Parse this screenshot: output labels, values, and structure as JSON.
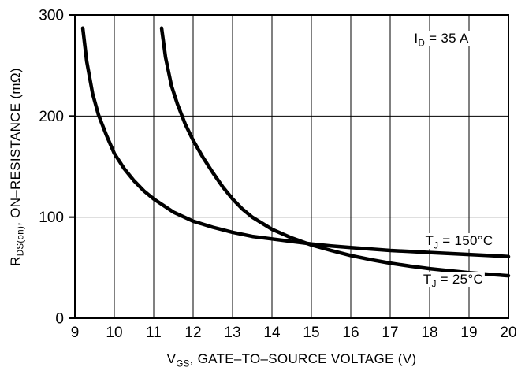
{
  "chart_data": {
    "type": "line",
    "title": "",
    "xlabel": "VGS, GATE–TO–SOURCE VOLTAGE (V)",
    "ylabel": "RDS(on), ON–RESISTANCE (mΩ)",
    "xlabel_parts": {
      "base": "V",
      "sub": "GS",
      "rest": ", GATE–TO–SOURCE VOLTAGE (V)"
    },
    "ylabel_parts": {
      "base": "R",
      "sub": "DS(on)",
      "rest": ", ON–RESISTANCE (mΩ)"
    },
    "xlim": [
      9,
      20
    ],
    "ylim": [
      0,
      300
    ],
    "xticks": [
      9,
      10,
      11,
      12,
      13,
      14,
      15,
      16,
      17,
      18,
      19,
      20
    ],
    "yticks": [
      0,
      100,
      200,
      300
    ],
    "grid": true,
    "line_color": "#000000",
    "legend_position": "inline-annotations",
    "annotations": [
      {
        "name": "drain-current-label",
        "base": "I",
        "sub": "D",
        "rest": " = 35 A",
        "x": 18.3,
        "y": 277
      },
      {
        "name": "tj-150-label",
        "base": "T",
        "sub": "J",
        "rest": " = 150°C",
        "x": 18.75,
        "y": 76
      },
      {
        "name": "tj-25-label",
        "base": "T",
        "sub": "J",
        "rest": " = 25°C",
        "x": 18.6,
        "y": 38
      }
    ],
    "series": [
      {
        "name": "TJ = 150°C",
        "points": [
          [
            9.2,
            287
          ],
          [
            9.3,
            254
          ],
          [
            9.45,
            222
          ],
          [
            9.6,
            201
          ],
          [
            9.8,
            181
          ],
          [
            10,
            163
          ],
          [
            10.25,
            148
          ],
          [
            10.5,
            136
          ],
          [
            10.75,
            126
          ],
          [
            11,
            118
          ],
          [
            11.5,
            105
          ],
          [
            12,
            96
          ],
          [
            12.5,
            90
          ],
          [
            13,
            85
          ],
          [
            13.5,
            81
          ],
          [
            14,
            78.5
          ],
          [
            14.5,
            76
          ],
          [
            15,
            73.5
          ],
          [
            15.5,
            71.5
          ],
          [
            16,
            70
          ],
          [
            16.5,
            68.5
          ],
          [
            17,
            67
          ],
          [
            17.5,
            66
          ],
          [
            18,
            65
          ],
          [
            18.5,
            64
          ],
          [
            19,
            63
          ],
          [
            19.5,
            62
          ],
          [
            20,
            61
          ]
        ]
      },
      {
        "name": "TJ = 25°C",
        "points": [
          [
            11.2,
            287
          ],
          [
            11.3,
            258
          ],
          [
            11.45,
            230
          ],
          [
            11.6,
            212
          ],
          [
            11.8,
            192
          ],
          [
            12,
            176
          ],
          [
            12.25,
            159
          ],
          [
            12.5,
            144
          ],
          [
            12.75,
            130
          ],
          [
            13,
            118
          ],
          [
            13.25,
            108
          ],
          [
            13.5,
            100
          ],
          [
            14,
            88
          ],
          [
            14.5,
            79.5
          ],
          [
            15,
            72.5
          ],
          [
            15.5,
            67
          ],
          [
            16,
            62
          ],
          [
            16.5,
            58
          ],
          [
            17,
            54.5
          ],
          [
            17.5,
            51.5
          ],
          [
            18,
            49
          ],
          [
            18.5,
            47
          ],
          [
            19,
            45
          ],
          [
            19.5,
            43.5
          ],
          [
            20,
            42
          ]
        ]
      }
    ]
  }
}
